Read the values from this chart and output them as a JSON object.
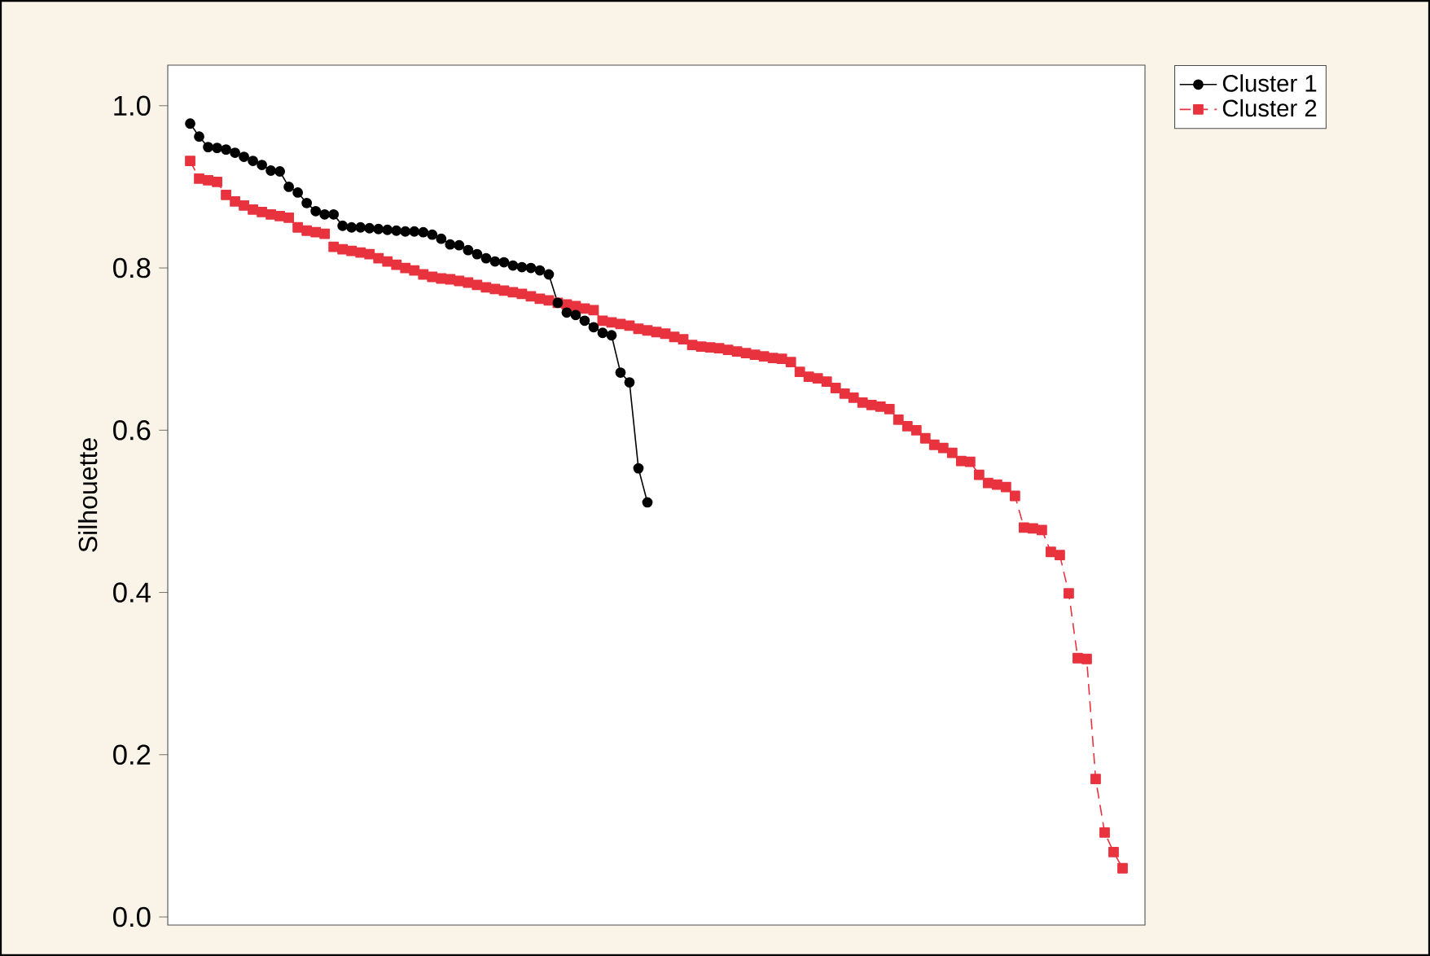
{
  "chart_data": {
    "type": "line",
    "ylabel": "Silhouette",
    "categories": [
      null,
      null,
      null,
      null,
      null,
      null,
      null,
      null,
      null,
      null,
      null,
      null,
      null,
      null,
      null,
      null,
      null,
      null,
      null,
      null,
      null,
      null,
      null,
      null,
      null,
      null,
      null,
      null,
      null,
      null,
      null,
      null,
      null,
      null,
      null,
      null,
      null,
      null,
      null,
      null,
      null,
      null,
      null,
      null,
      null,
      null,
      null,
      null,
      null,
      null,
      null,
      null,
      null,
      null,
      null,
      null,
      null,
      null,
      null,
      null,
      null,
      null,
      null,
      null,
      null,
      null,
      null,
      null,
      null,
      null,
      null,
      null,
      null,
      null,
      null,
      null,
      null,
      null,
      null,
      null,
      null,
      null,
      null,
      null,
      null,
      null,
      null,
      null,
      null,
      null,
      null,
      null,
      null,
      null,
      null,
      null,
      null,
      null,
      null,
      null,
      null,
      null,
      null,
      null,
      null
    ],
    "ylim": [
      -0.01,
      1.05
    ],
    "yticks": [
      {
        "value": 0,
        "label": "0.0"
      },
      {
        "value": 0.2,
        "label": "0.2"
      },
      {
        "value": 0.4,
        "label": "0.4"
      },
      {
        "value": 0.6,
        "label": "0.6"
      },
      {
        "value": 0.8,
        "label": "0.8"
      },
      {
        "value": 1,
        "label": "1.0"
      }
    ],
    "tick_labels": "y",
    "grid": false,
    "legend": "top right",
    "series": [
      {
        "name": "Cluster 1",
        "color": "#000000",
        "marker": "circle",
        "line_style": "solid",
        "values": [
          0.978,
          0.962,
          0.949,
          0.948,
          0.946,
          0.942,
          0.937,
          0.932,
          0.927,
          0.92,
          0.919,
          0.9,
          0.893,
          0.88,
          0.87,
          0.866,
          0.866,
          0.852,
          0.85,
          0.85,
          0.849,
          0.848,
          0.847,
          0.846,
          0.845,
          0.845,
          0.844,
          0.841,
          0.836,
          0.829,
          0.828,
          0.822,
          0.817,
          0.812,
          0.808,
          0.807,
          0.803,
          0.801,
          0.8,
          0.797,
          0.792,
          0.757,
          0.745,
          0.742,
          0.735,
          0.727,
          0.72,
          0.717,
          0.671,
          0.659,
          0.553,
          0.511,
          null,
          null,
          null,
          null,
          null,
          null,
          null,
          null,
          null,
          null,
          null,
          null,
          null,
          null,
          null,
          null,
          null,
          null,
          null,
          null,
          null,
          null,
          null,
          null,
          null,
          null,
          null,
          null,
          null,
          null,
          null,
          null,
          null,
          null,
          null,
          null,
          null,
          null,
          null,
          null,
          null,
          null,
          null,
          null,
          null,
          null,
          null,
          null,
          null,
          null,
          null,
          null,
          null
        ]
      },
      {
        "name": "Cluster 2",
        "color": "#e8333f",
        "marker": "square",
        "line_style": "dashed",
        "values": [
          0.932,
          0.91,
          0.908,
          0.906,
          0.89,
          0.882,
          0.877,
          0.872,
          0.869,
          0.866,
          0.864,
          0.862,
          0.85,
          0.846,
          0.844,
          0.842,
          0.826,
          0.823,
          0.821,
          0.819,
          0.817,
          0.812,
          0.808,
          0.804,
          0.8,
          0.797,
          0.792,
          0.789,
          0.787,
          0.786,
          0.784,
          0.782,
          0.779,
          0.776,
          0.774,
          0.772,
          0.77,
          0.768,
          0.765,
          0.762,
          0.76,
          0.757,
          0.755,
          0.753,
          0.75,
          0.748,
          0.735,
          0.733,
          0.731,
          0.729,
          0.725,
          0.723,
          0.721,
          0.719,
          0.715,
          0.712,
          0.705,
          0.703,
          0.702,
          0.701,
          0.699,
          0.697,
          0.695,
          0.693,
          0.691,
          0.689,
          0.688,
          0.684,
          0.672,
          0.666,
          0.664,
          0.66,
          0.652,
          0.645,
          0.64,
          0.634,
          0.631,
          0.629,
          0.626,
          0.613,
          0.605,
          0.6,
          0.59,
          0.582,
          0.578,
          0.572,
          0.562,
          0.561,
          0.545,
          0.535,
          0.533,
          0.53,
          0.519,
          0.48,
          0.479,
          0.477,
          0.45,
          0.446,
          0.399,
          0.319,
          0.318,
          0.17,
          0.104,
          0.08,
          0.06
        ]
      }
    ]
  }
}
